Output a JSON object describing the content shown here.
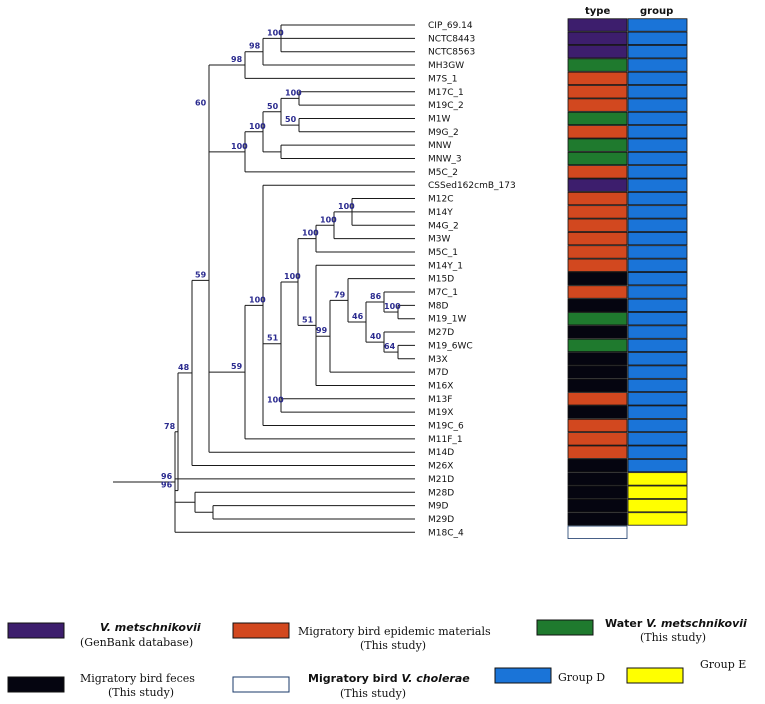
{
  "figure": {
    "columns": {
      "type_label": "type",
      "group_label": "group"
    },
    "colors": {
      "genbank": "#3d1e6d",
      "epidemic": "#d2481f",
      "water": "#1f7a2e",
      "feces": "#050510",
      "cholerae": "#ffffff",
      "groupD": "#1a74d8",
      "groupE": "#ffff00"
    },
    "taxa": [
      {
        "name": "CIP_69.14",
        "type": "genbank",
        "group": "groupD"
      },
      {
        "name": "NCTC8443",
        "type": "genbank",
        "group": "groupD"
      },
      {
        "name": "NCTC8563",
        "type": "genbank",
        "group": "groupD"
      },
      {
        "name": "MH3GW",
        "type": "water",
        "group": "groupD"
      },
      {
        "name": "M7S_1",
        "type": "epidemic",
        "group": "groupD"
      },
      {
        "name": "M17C_1",
        "type": "epidemic",
        "group": "groupD"
      },
      {
        "name": "M19C_2",
        "type": "epidemic",
        "group": "groupD"
      },
      {
        "name": "M1W",
        "type": "water",
        "group": "groupD"
      },
      {
        "name": "M9G_2",
        "type": "epidemic",
        "group": "groupD"
      },
      {
        "name": "MNW",
        "type": "water",
        "group": "groupD"
      },
      {
        "name": "MNW_3",
        "type": "water",
        "group": "groupD"
      },
      {
        "name": "M5C_2",
        "type": "epidemic",
        "group": "groupD"
      },
      {
        "name": "CSSed162cmB_173",
        "type": "genbank",
        "group": "groupD"
      },
      {
        "name": "M12C",
        "type": "epidemic",
        "group": "groupD"
      },
      {
        "name": "M14Y",
        "type": "epidemic",
        "group": "groupD"
      },
      {
        "name": "M4G_2",
        "type": "epidemic",
        "group": "groupD"
      },
      {
        "name": "M3W",
        "type": "epidemic",
        "group": "groupD"
      },
      {
        "name": "M5C_1",
        "type": "epidemic",
        "group": "groupD"
      },
      {
        "name": "M14Y_1",
        "type": "epidemic",
        "group": "groupD"
      },
      {
        "name": "M15D",
        "type": "feces",
        "group": "groupD"
      },
      {
        "name": "M7C_1",
        "type": "epidemic",
        "group": "groupD"
      },
      {
        "name": "M8D",
        "type": "feces",
        "group": "groupD"
      },
      {
        "name": "M19_1W",
        "type": "water",
        "group": "groupD"
      },
      {
        "name": "M27D",
        "type": "feces",
        "group": "groupD"
      },
      {
        "name": "M19_6WC",
        "type": "water",
        "group": "groupD"
      },
      {
        "name": "M3X",
        "type": "feces",
        "group": "groupD"
      },
      {
        "name": "M7D",
        "type": "feces",
        "group": "groupD"
      },
      {
        "name": "M16X",
        "type": "feces",
        "group": "groupD"
      },
      {
        "name": "M13F",
        "type": "epidemic",
        "group": "groupD"
      },
      {
        "name": "M19X",
        "type": "feces",
        "group": "groupD"
      },
      {
        "name": "M19C_6",
        "type": "epidemic",
        "group": "groupD"
      },
      {
        "name": "M11F_1",
        "type": "epidemic",
        "group": "groupD"
      },
      {
        "name": "M14D",
        "type": "epidemic",
        "group": "groupD"
      },
      {
        "name": "M26X",
        "type": "feces",
        "group": "groupD"
      },
      {
        "name": "M21D",
        "type": "feces",
        "group": "groupE"
      },
      {
        "name": "M28D",
        "type": "feces",
        "group": "groupE"
      },
      {
        "name": "M9D",
        "type": "feces",
        "group": "groupE"
      },
      {
        "name": "M29D",
        "type": "feces",
        "group": "groupE"
      },
      {
        "name": "M18C_4",
        "type": "cholerae",
        "group": "none"
      }
    ],
    "bootstrap": [
      "100",
      "98",
      "98",
      "100",
      "50",
      "50",
      "100",
      "100",
      "60",
      "100",
      "100",
      "100",
      "79",
      "86",
      "46",
      "100",
      "40",
      "64",
      "99",
      "51",
      "100",
      "100",
      "51",
      "59",
      "59",
      "48",
      "100",
      "96",
      "78",
      "96"
    ]
  },
  "legend": {
    "genbank": {
      "line1": "V. metschnikovii",
      "line2": "(GenBank database)"
    },
    "epidemic": {
      "line1": "Migratory bird epidemic materials",
      "line2": "(This study)"
    },
    "water": {
      "line1a": "Water ",
      "line1b": "V. metschnikovii",
      "line2": "(This study)"
    },
    "feces": {
      "line1": "Migratory bird feces",
      "line2": "(This study)"
    },
    "cholerae": {
      "line1a": "Migratory bird ",
      "line1b": "V. cholerae",
      "line2": "(This study)"
    },
    "groupD": {
      "label": "Group D"
    },
    "groupE": {
      "label": "Group E"
    }
  }
}
